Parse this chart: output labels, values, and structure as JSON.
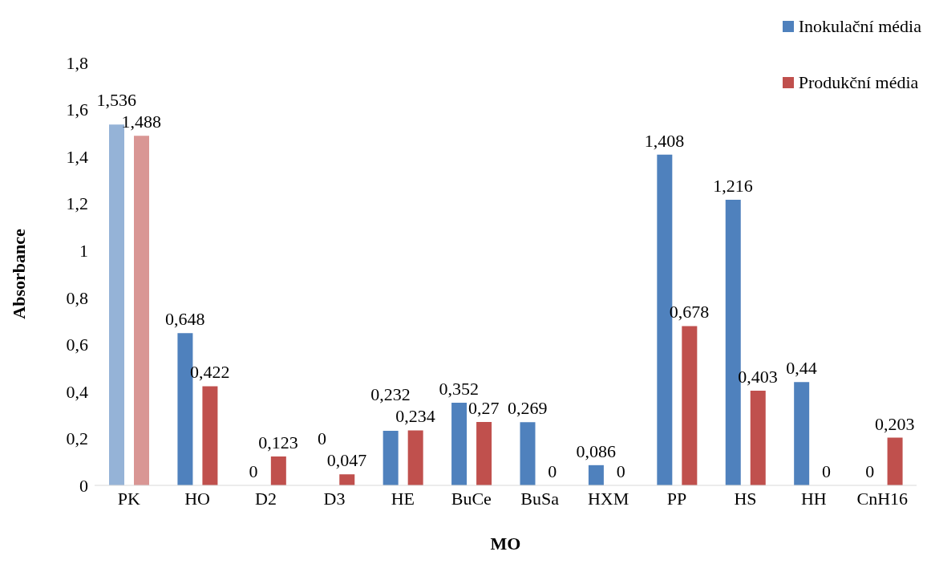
{
  "chart_data": {
    "type": "bar",
    "xlabel": "MO",
    "ylabel": "Absorbance",
    "categories": [
      "PK",
      "HO",
      "D2",
      "D3",
      "HE",
      "BuCe",
      "BuSa",
      "HXM",
      "PP",
      "HS",
      "HH",
      "CnH16"
    ],
    "series": [
      {
        "name": "Inokulační média",
        "color": "#4f81bd",
        "colors": [
          "#95b3d7",
          "#4f81bd",
          "#4f81bd",
          "#4f81bd",
          "#4f81bd",
          "#4f81bd",
          "#4f81bd",
          "#4f81bd",
          "#4f81bd",
          "#4f81bd",
          "#4f81bd",
          "#4f81bd"
        ],
        "values": [
          1.536,
          0.648,
          0,
          0,
          0.232,
          0.352,
          0.269,
          0.086,
          1.408,
          1.216,
          0.44,
          0
        ],
        "value_labels": [
          "1,536",
          "0,648",
          "0",
          "0",
          "0,232",
          "0,352",
          "0,269",
          "0,086",
          "1,408",
          "1,216",
          "0,44",
          "0"
        ]
      },
      {
        "name": "Produkční média",
        "color": "#c0504d",
        "colors": [
          "#d99694",
          "#c0504d",
          "#c0504d",
          "#c0504d",
          "#c0504d",
          "#c0504d",
          "#c0504d",
          "#c0504d",
          "#c0504d",
          "#c0504d",
          "#c0504d",
          "#c0504d"
        ],
        "values": [
          1.488,
          0.422,
          0.123,
          0.047,
          0.234,
          0.27,
          0,
          0,
          0.678,
          0.403,
          0,
          0.203
        ],
        "value_labels": [
          "1,488",
          "0,422",
          "0,123",
          "0,047",
          "0,234",
          "0,27",
          "0",
          "0",
          "0,678",
          "0,403",
          "0",
          "0,203"
        ]
      }
    ],
    "ylim": [
      0,
      1.8
    ],
    "yticks": [
      0,
      {
        "value": 0.2,
        "label": "0,2"
      },
      {
        "value": 0.4,
        "label": "0,4"
      },
      {
        "value": 0.6,
        "label": "0,6"
      },
      {
        "value": 0.8,
        "label": "0,8"
      },
      1,
      {
        "value": 1.2,
        "label": "1,2"
      },
      {
        "value": 1.4,
        "label": "1,4"
      },
      {
        "value": 1.6,
        "label": "1,6"
      },
      {
        "value": 1.8,
        "label": "1,8"
      }
    ],
    "grid": false,
    "legend": "top right"
  }
}
